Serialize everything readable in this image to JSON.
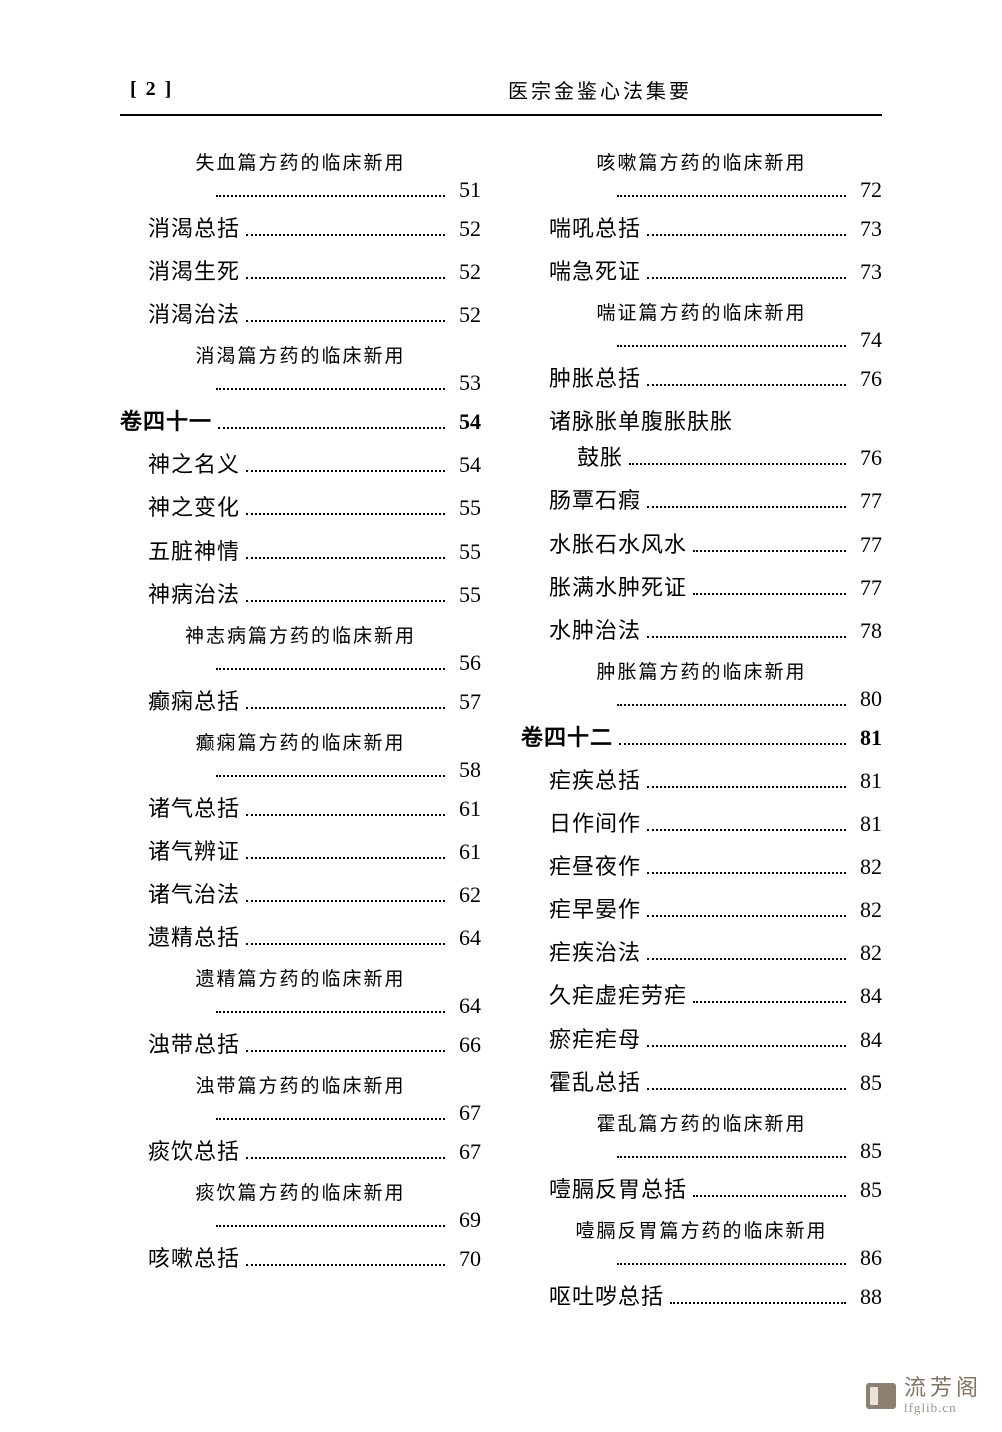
{
  "header": {
    "page_number_display": "[ 2 ]",
    "book_title": "医宗金鉴心法集要"
  },
  "left_column": [
    {
      "type": "sub",
      "label": "失血篇方药的临床新用",
      "page": "51"
    },
    {
      "type": "entry",
      "indent": 1,
      "label": "消渴总括",
      "page": "52"
    },
    {
      "type": "entry",
      "indent": 1,
      "label": "消渴生死",
      "page": "52"
    },
    {
      "type": "entry",
      "indent": 1,
      "label": "消渴治法",
      "page": "52"
    },
    {
      "type": "sub",
      "label": "消渴篇方药的临床新用",
      "page": "53"
    },
    {
      "type": "entry",
      "indent": 0,
      "bold": true,
      "label": "卷四十一",
      "page": "54"
    },
    {
      "type": "entry",
      "indent": 1,
      "label": "神之名义",
      "page": "54"
    },
    {
      "type": "entry",
      "indent": 1,
      "label": "神之变化",
      "page": "55"
    },
    {
      "type": "entry",
      "indent": 1,
      "label": "五脏神情",
      "page": "55"
    },
    {
      "type": "entry",
      "indent": 1,
      "label": "神病治法",
      "page": "55"
    },
    {
      "type": "sub",
      "label": "神志病篇方药的临床新用",
      "page": "56"
    },
    {
      "type": "entry",
      "indent": 1,
      "label": "癫痫总括",
      "page": "57"
    },
    {
      "type": "sub",
      "label": "癫痫篇方药的临床新用",
      "page": "58"
    },
    {
      "type": "entry",
      "indent": 1,
      "label": "诸气总括",
      "page": "61"
    },
    {
      "type": "entry",
      "indent": 1,
      "label": "诸气辨证",
      "page": "61"
    },
    {
      "type": "entry",
      "indent": 1,
      "label": "诸气治法",
      "page": "62"
    },
    {
      "type": "entry",
      "indent": 1,
      "label": "遗精总括",
      "page": "64"
    },
    {
      "type": "sub",
      "label": "遗精篇方药的临床新用",
      "page": "64"
    },
    {
      "type": "entry",
      "indent": 1,
      "label": "浊带总括",
      "page": "66"
    },
    {
      "type": "sub",
      "label": "浊带篇方药的临床新用",
      "page": "67"
    },
    {
      "type": "entry",
      "indent": 1,
      "label": "痰饮总括",
      "page": "67"
    },
    {
      "type": "sub",
      "label": "痰饮篇方药的临床新用",
      "page": "69"
    },
    {
      "type": "entry",
      "indent": 1,
      "label": "咳嗽总括",
      "page": "70"
    }
  ],
  "right_column": [
    {
      "type": "sub",
      "label": "咳嗽篇方药的临床新用",
      "page": "72"
    },
    {
      "type": "entry",
      "indent": 1,
      "label": "喘吼总括",
      "page": "73"
    },
    {
      "type": "entry",
      "indent": 1,
      "label": "喘急死证",
      "page": "73"
    },
    {
      "type": "sub",
      "label": "喘证篇方药的临床新用",
      "page": "74"
    },
    {
      "type": "entry",
      "indent": 1,
      "label": "肿胀总括",
      "page": "76"
    },
    {
      "type": "wrap",
      "indent": 1,
      "label_line1": "诸脉胀单腹胀肤胀",
      "label_line2": "鼓胀",
      "page": "76"
    },
    {
      "type": "entry",
      "indent": 1,
      "label": "肠覃石瘕",
      "page": "77"
    },
    {
      "type": "entry",
      "indent": 1,
      "label": "水胀石水风水",
      "page": "77"
    },
    {
      "type": "entry",
      "indent": 1,
      "label": "胀满水肿死证",
      "page": "77"
    },
    {
      "type": "entry",
      "indent": 1,
      "label": "水肿治法",
      "page": "78"
    },
    {
      "type": "sub",
      "label": "肿胀篇方药的临床新用",
      "page": "80"
    },
    {
      "type": "entry",
      "indent": 0,
      "bold": true,
      "label": "卷四十二",
      "page": "81"
    },
    {
      "type": "entry",
      "indent": 1,
      "label": "疟疾总括",
      "page": "81"
    },
    {
      "type": "entry",
      "indent": 1,
      "label": "日作间作",
      "page": "81"
    },
    {
      "type": "entry",
      "indent": 1,
      "label": "疟昼夜作",
      "page": "82"
    },
    {
      "type": "entry",
      "indent": 1,
      "label": "疟早晏作",
      "page": "82"
    },
    {
      "type": "entry",
      "indent": 1,
      "label": "疟疾治法",
      "page": "82"
    },
    {
      "type": "entry",
      "indent": 1,
      "label": "久疟虚疟劳疟",
      "page": "84"
    },
    {
      "type": "entry",
      "indent": 1,
      "label": "瘀疟疟母",
      "page": "84"
    },
    {
      "type": "entry",
      "indent": 1,
      "label": "霍乱总括",
      "page": "85"
    },
    {
      "type": "sub",
      "label": "霍乱篇方药的临床新用",
      "page": "85"
    },
    {
      "type": "entry",
      "indent": 1,
      "label": "噎膈反胃总括",
      "page": "85"
    },
    {
      "type": "sub",
      "label": "噎膈反胃篇方药的临床新用",
      "page": "86"
    },
    {
      "type": "entry",
      "indent": 1,
      "label": "呕吐哕总括",
      "page": "88"
    }
  ],
  "watermark": {
    "cn": "流芳阁",
    "en": "lfglib.cn"
  }
}
